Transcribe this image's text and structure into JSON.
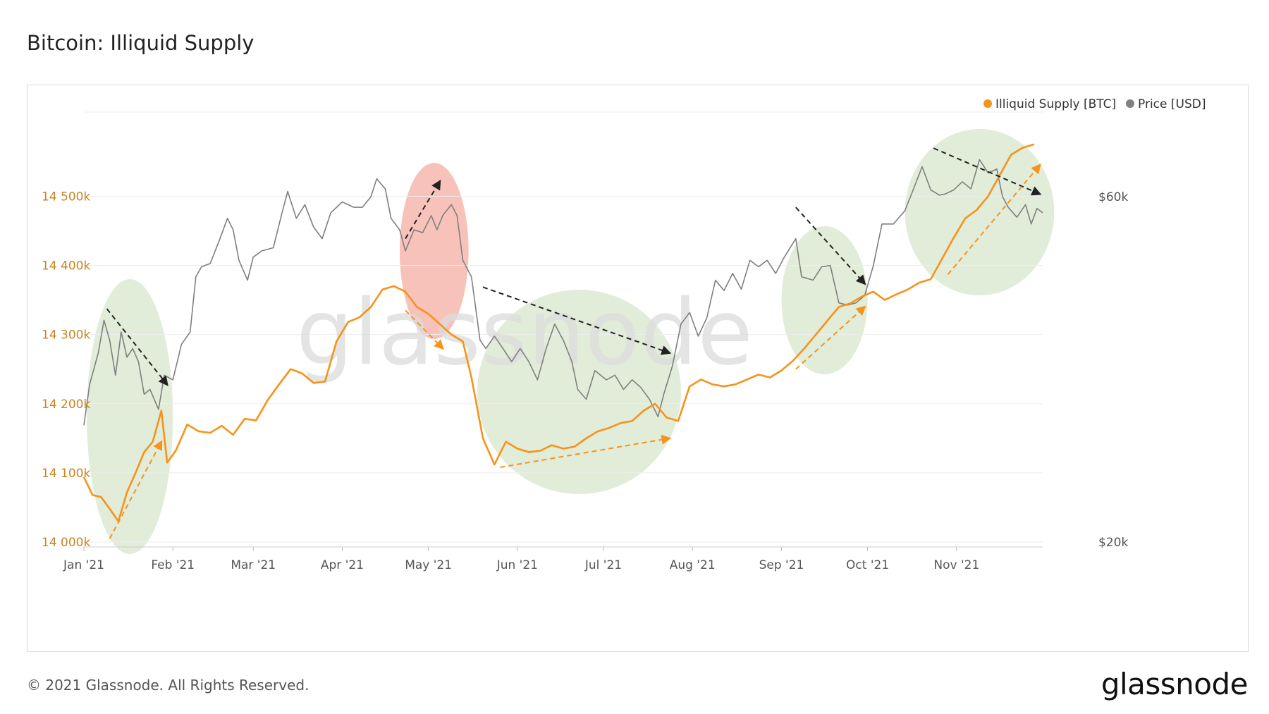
{
  "title": "Bitcoin: Illiquid Supply",
  "footer": {
    "copyright": "© 2021 Glassnode. All Rights Reserved.",
    "logo": "glassnode"
  },
  "watermark": "glassnode",
  "colors": {
    "illiquid": "#f7931a",
    "price": "#7f7f7f",
    "green_highlight": "#d9e7cf",
    "red_highlight": "#f6b7ad",
    "grid": "#eeeeee"
  },
  "chart_data": {
    "type": "line",
    "title": "Bitcoin: Illiquid Supply",
    "legend_position": "top-right",
    "grid": true,
    "x_labels": [
      "Jan '21",
      "Feb '21",
      "Mar '21",
      "Apr '21",
      "May '21",
      "Jun '21",
      "Jul '21",
      "Aug '21",
      "Sep '21",
      "Oct '21",
      "Nov '21"
    ],
    "x_label_dates": [
      "2021-01-01",
      "2021-02-01",
      "2021-03-01",
      "2021-04-01",
      "2021-05-01",
      "2021-06-01",
      "2021-07-01",
      "2021-08-01",
      "2021-09-01",
      "2021-10-01",
      "2021-11-01"
    ],
    "xlim": [
      "2021-01-01",
      "2021-12-01"
    ],
    "y_left": {
      "label": "",
      "unit": "BTC",
      "ylim": [
        14000000,
        14640000
      ],
      "tick_labels": [
        "14 000k",
        "14 100k",
        "14 200k",
        "14 300k",
        "14 400k",
        "14 500k"
      ],
      "tick_values": [
        14000000,
        14100000,
        14200000,
        14300000,
        14400000,
        14500000
      ]
    },
    "y_right": {
      "scale": "log",
      "unit": "USD",
      "tick_labels": [
        "$20k",
        "$60k"
      ],
      "tick_values": [
        20000,
        60000
      ]
    },
    "series": [
      {
        "name": "Illiquid Supply [BTC]",
        "axis": "left",
        "points": [
          [
            "2021-01-01",
            14094000
          ],
          [
            "2021-01-04",
            14068000
          ],
          [
            "2021-01-07",
            14065000
          ],
          [
            "2021-01-10",
            14048000
          ],
          [
            "2021-01-13",
            14030000
          ],
          [
            "2021-01-16",
            14072000
          ],
          [
            "2021-01-19",
            14100000
          ],
          [
            "2021-01-22",
            14130000
          ],
          [
            "2021-01-25",
            14145000
          ],
          [
            "2021-01-28",
            14190000
          ],
          [
            "2021-01-30",
            14115000
          ],
          [
            "2021-02-02",
            14132000
          ],
          [
            "2021-02-06",
            14170000
          ],
          [
            "2021-02-10",
            14160000
          ],
          [
            "2021-02-14",
            14158000
          ],
          [
            "2021-02-18",
            14168000
          ],
          [
            "2021-02-22",
            14155000
          ],
          [
            "2021-02-26",
            14178000
          ],
          [
            "2021-03-02",
            14176000
          ],
          [
            "2021-03-06",
            14205000
          ],
          [
            "2021-03-10",
            14228000
          ],
          [
            "2021-03-14",
            14250000
          ],
          [
            "2021-03-18",
            14244000
          ],
          [
            "2021-03-22",
            14230000
          ],
          [
            "2021-03-26",
            14232000
          ],
          [
            "2021-03-30",
            14290000
          ],
          [
            "2021-04-03",
            14318000
          ],
          [
            "2021-04-07",
            14325000
          ],
          [
            "2021-04-11",
            14340000
          ],
          [
            "2021-04-15",
            14365000
          ],
          [
            "2021-04-19",
            14370000
          ],
          [
            "2021-04-23",
            14362000
          ],
          [
            "2021-04-27",
            14340000
          ],
          [
            "2021-05-01",
            14330000
          ],
          [
            "2021-05-05",
            14315000
          ],
          [
            "2021-05-09",
            14300000
          ],
          [
            "2021-05-13",
            14290000
          ],
          [
            "2021-05-16",
            14238000
          ],
          [
            "2021-05-20",
            14150000
          ],
          [
            "2021-05-24",
            14112000
          ],
          [
            "2021-05-28",
            14145000
          ],
          [
            "2021-06-01",
            14135000
          ],
          [
            "2021-06-05",
            14130000
          ],
          [
            "2021-06-09",
            14132000
          ],
          [
            "2021-06-13",
            14140000
          ],
          [
            "2021-06-17",
            14135000
          ],
          [
            "2021-06-21",
            14138000
          ],
          [
            "2021-06-25",
            14150000
          ],
          [
            "2021-06-29",
            14160000
          ],
          [
            "2021-07-03",
            14165000
          ],
          [
            "2021-07-07",
            14172000
          ],
          [
            "2021-07-11",
            14175000
          ],
          [
            "2021-07-15",
            14190000
          ],
          [
            "2021-07-19",
            14200000
          ],
          [
            "2021-07-23",
            14180000
          ],
          [
            "2021-07-27",
            14175000
          ],
          [
            "2021-07-31",
            14225000
          ],
          [
            "2021-08-04",
            14235000
          ],
          [
            "2021-08-08",
            14228000
          ],
          [
            "2021-08-12",
            14225000
          ],
          [
            "2021-08-16",
            14228000
          ],
          [
            "2021-08-20",
            14235000
          ],
          [
            "2021-08-24",
            14242000
          ],
          [
            "2021-08-28",
            14238000
          ],
          [
            "2021-09-01",
            14248000
          ],
          [
            "2021-09-05",
            14262000
          ],
          [
            "2021-09-09",
            14280000
          ],
          [
            "2021-09-13",
            14300000
          ],
          [
            "2021-09-17",
            14320000
          ],
          [
            "2021-09-21",
            14340000
          ],
          [
            "2021-09-25",
            14345000
          ],
          [
            "2021-09-29",
            14355000
          ],
          [
            "2021-10-03",
            14362000
          ],
          [
            "2021-10-07",
            14350000
          ],
          [
            "2021-10-11",
            14358000
          ],
          [
            "2021-10-15",
            14365000
          ],
          [
            "2021-10-19",
            14375000
          ],
          [
            "2021-10-23",
            14380000
          ],
          [
            "2021-10-27",
            14410000
          ],
          [
            "2021-10-31",
            14440000
          ],
          [
            "2021-11-04",
            14468000
          ],
          [
            "2021-11-08",
            14480000
          ],
          [
            "2021-11-12",
            14500000
          ],
          [
            "2021-11-16",
            14530000
          ],
          [
            "2021-11-20",
            14560000
          ],
          [
            "2021-11-24",
            14570000
          ],
          [
            "2021-11-28",
            14575000
          ]
        ]
      },
      {
        "name": "Price [USD]",
        "axis": "right",
        "points": [
          [
            "2021-01-01",
            29000
          ],
          [
            "2021-01-03",
            33000
          ],
          [
            "2021-01-06",
            36500
          ],
          [
            "2021-01-08",
            40500
          ],
          [
            "2021-01-10",
            38000
          ],
          [
            "2021-01-12",
            34000
          ],
          [
            "2021-01-14",
            39000
          ],
          [
            "2021-01-16",
            36000
          ],
          [
            "2021-01-18",
            37000
          ],
          [
            "2021-01-20",
            35500
          ],
          [
            "2021-01-22",
            32000
          ],
          [
            "2021-01-24",
            32500
          ],
          [
            "2021-01-27",
            30500
          ],
          [
            "2021-01-29",
            34000
          ],
          [
            "2021-02-01",
            33500
          ],
          [
            "2021-02-04",
            37500
          ],
          [
            "2021-02-07",
            39000
          ],
          [
            "2021-02-09",
            46500
          ],
          [
            "2021-02-11",
            48000
          ],
          [
            "2021-02-14",
            48500
          ],
          [
            "2021-02-17",
            52000
          ],
          [
            "2021-02-20",
            56000
          ],
          [
            "2021-02-22",
            54000
          ],
          [
            "2021-02-24",
            49000
          ],
          [
            "2021-02-27",
            46000
          ],
          [
            "2021-03-01",
            49500
          ],
          [
            "2021-03-04",
            50500
          ],
          [
            "2021-03-08",
            51000
          ],
          [
            "2021-03-11",
            57000
          ],
          [
            "2021-03-13",
            61000
          ],
          [
            "2021-03-16",
            56000
          ],
          [
            "2021-03-19",
            58500
          ],
          [
            "2021-03-22",
            54500
          ],
          [
            "2021-03-25",
            52500
          ],
          [
            "2021-03-28",
            57000
          ],
          [
            "2021-04-01",
            59000
          ],
          [
            "2021-04-05",
            58000
          ],
          [
            "2021-04-08",
            58000
          ],
          [
            "2021-04-11",
            60000
          ],
          [
            "2021-04-13",
            63500
          ],
          [
            "2021-04-16",
            61500
          ],
          [
            "2021-04-18",
            56000
          ],
          [
            "2021-04-21",
            54000
          ],
          [
            "2021-04-23",
            50500
          ],
          [
            "2021-04-26",
            54000
          ],
          [
            "2021-04-29",
            53500
          ],
          [
            "2021-05-02",
            56500
          ],
          [
            "2021-05-04",
            54000
          ],
          [
            "2021-05-06",
            56500
          ],
          [
            "2021-05-09",
            58500
          ],
          [
            "2021-05-11",
            56500
          ],
          [
            "2021-05-13",
            49000
          ],
          [
            "2021-05-16",
            46500
          ],
          [
            "2021-05-19",
            38000
          ],
          [
            "2021-05-21",
            37000
          ],
          [
            "2021-05-24",
            38500
          ],
          [
            "2021-05-27",
            37000
          ],
          [
            "2021-05-30",
            35500
          ],
          [
            "2021-06-02",
            37000
          ],
          [
            "2021-06-05",
            35500
          ],
          [
            "2021-06-08",
            33500
          ],
          [
            "2021-06-11",
            37000
          ],
          [
            "2021-06-14",
            40000
          ],
          [
            "2021-06-17",
            38000
          ],
          [
            "2021-06-20",
            35500
          ],
          [
            "2021-06-22",
            32500
          ],
          [
            "2021-06-25",
            31500
          ],
          [
            "2021-06-28",
            34500
          ],
          [
            "2021-07-02",
            33500
          ],
          [
            "2021-07-05",
            34000
          ],
          [
            "2021-07-08",
            32500
          ],
          [
            "2021-07-11",
            33500
          ],
          [
            "2021-07-14",
            32700
          ],
          [
            "2021-07-17",
            31500
          ],
          [
            "2021-07-20",
            29800
          ],
          [
            "2021-07-22",
            32000
          ],
          [
            "2021-07-25",
            35000
          ],
          [
            "2021-07-28",
            40000
          ],
          [
            "2021-07-31",
            41500
          ],
          [
            "2021-08-03",
            38500
          ],
          [
            "2021-08-06",
            40800
          ],
          [
            "2021-08-09",
            46000
          ],
          [
            "2021-08-12",
            44500
          ],
          [
            "2021-08-15",
            47000
          ],
          [
            "2021-08-18",
            44700
          ],
          [
            "2021-08-21",
            49000
          ],
          [
            "2021-08-24",
            48000
          ],
          [
            "2021-08-27",
            49000
          ],
          [
            "2021-08-30",
            47000
          ],
          [
            "2021-09-02",
            49500
          ],
          [
            "2021-09-06",
            52500
          ],
          [
            "2021-09-08",
            46500
          ],
          [
            "2021-09-12",
            46000
          ],
          [
            "2021-09-15",
            48000
          ],
          [
            "2021-09-18",
            48200
          ],
          [
            "2021-09-21",
            42800
          ],
          [
            "2021-09-24",
            42500
          ],
          [
            "2021-09-27",
            42800
          ],
          [
            "2021-09-30",
            43800
          ],
          [
            "2021-10-03",
            48200
          ],
          [
            "2021-10-06",
            55000
          ],
          [
            "2021-10-10",
            55000
          ],
          [
            "2021-10-14",
            57400
          ],
          [
            "2021-10-17",
            61500
          ],
          [
            "2021-10-20",
            66000
          ],
          [
            "2021-10-23",
            61300
          ],
          [
            "2021-10-26",
            60300
          ],
          [
            "2021-10-28",
            60500
          ],
          [
            "2021-10-31",
            61300
          ],
          [
            "2021-11-03",
            62900
          ],
          [
            "2021-11-06",
            61500
          ],
          [
            "2021-11-09",
            67500
          ],
          [
            "2021-11-12",
            64700
          ],
          [
            "2021-11-15",
            65500
          ],
          [
            "2021-11-17",
            60000
          ],
          [
            "2021-11-19",
            58000
          ],
          [
            "2021-11-22",
            56200
          ],
          [
            "2021-11-25",
            58500
          ],
          [
            "2021-11-27",
            55000
          ],
          [
            "2021-11-29",
            57800
          ],
          [
            "2021-12-01",
            57000
          ]
        ]
      }
    ]
  },
  "annotations": {
    "highlight_regions": [
      {
        "color": "green",
        "start": "2021-01-02",
        "end": "2021-02-01"
      },
      {
        "color": "red",
        "start": "2021-04-21",
        "end": "2021-05-15"
      },
      {
        "color": "green",
        "start": "2021-05-18",
        "end": "2021-07-28"
      },
      {
        "color": "green",
        "start": "2021-09-01",
        "end": "2021-10-01"
      },
      {
        "color": "green",
        "start": "2021-10-14",
        "end": "2021-12-05"
      }
    ],
    "trend_arrows": [
      {
        "series": "Price [USD]",
        "from": [
          "2021-01-09",
          42000
        ],
        "to": [
          "2021-01-30",
          33000
        ],
        "direction": "down"
      },
      {
        "series": "Illiquid Supply [BTC]",
        "from": [
          "2021-01-10",
          14005000
        ],
        "to": [
          "2021-01-28",
          14145000
        ],
        "direction": "up"
      },
      {
        "series": "Price [USD]",
        "from": [
          "2021-04-23",
          52500
        ],
        "to": [
          "2021-05-05",
          63000
        ],
        "direction": "up"
      },
      {
        "series": "Illiquid Supply [BTC]",
        "from": [
          "2021-04-23",
          14335000
        ],
        "to": [
          "2021-05-06",
          14280000
        ],
        "direction": "down"
      },
      {
        "series": "Price [USD]",
        "from": [
          "2021-05-20",
          45000
        ],
        "to": [
          "2021-07-24",
          36500
        ],
        "direction": "down"
      },
      {
        "series": "Illiquid Supply [BTC]",
        "from": [
          "2021-05-26",
          14108000
        ],
        "to": [
          "2021-07-24",
          14150000
        ],
        "direction": "up"
      },
      {
        "series": "Price [USD]",
        "from": [
          "2021-09-06",
          58000
        ],
        "to": [
          "2021-09-30",
          45500
        ],
        "direction": "down"
      },
      {
        "series": "Illiquid Supply [BTC]",
        "from": [
          "2021-09-06",
          14250000
        ],
        "to": [
          "2021-09-30",
          14340000
        ],
        "direction": "up"
      },
      {
        "series": "Price [USD]",
        "from": [
          "2021-10-24",
          70000
        ],
        "to": [
          "2021-11-30",
          60500
        ],
        "direction": "down"
      },
      {
        "series": "Illiquid Supply [BTC]",
        "from": [
          "2021-10-29",
          14387000
        ],
        "to": [
          "2021-11-30",
          14545000
        ],
        "direction": "up"
      }
    ]
  }
}
